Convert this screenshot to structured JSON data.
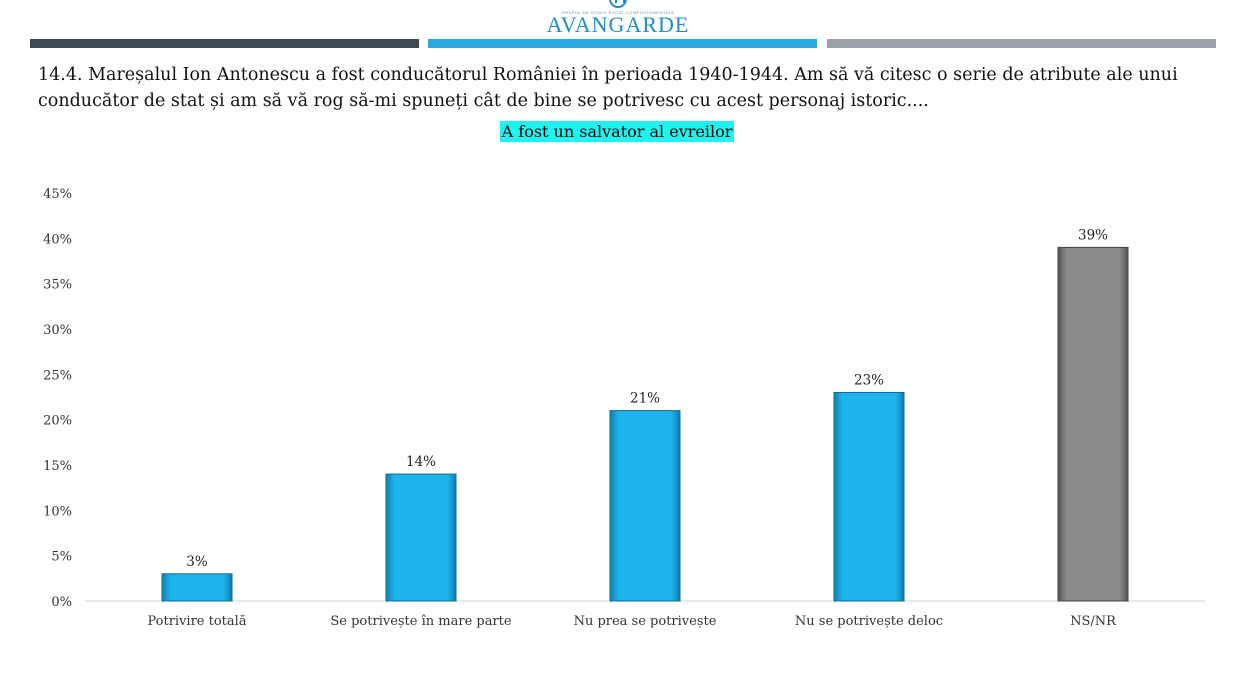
{
  "logo": {
    "name": "AVANGARDE",
    "tagline": "GRUPUL DE STUDII SOCIO-COMPORTAMENTALE",
    "icon": "avangarde-logo-icon"
  },
  "question": "14.4. Mareșalul Ion Antonescu a fost conducătorul României în perioada 1940-1944. Am să vă citesc o serie de atribute ale unui conducător de stat și am să vă rog să-mi spuneți cât de bine se potrivesc cu acest personaj istoric....",
  "colors": {
    "bar": "#1fb3ec",
    "bar_highlight": "#8a8a8a",
    "subtitle_bg": "#1ff3f0"
  },
  "chart_data": {
    "type": "bar",
    "title": "A fost un salvator al evreilor",
    "categories": [
      "Potrivire totală",
      "Se potrivește în mare parte",
      "Nu prea se potrivește",
      "Nu se potrivește deloc",
      "NS/NR"
    ],
    "values": [
      3,
      14,
      21,
      23,
      39
    ],
    "data_labels": [
      "3%",
      "14%",
      "21%",
      "23%",
      "39%"
    ],
    "bar_colors": [
      "#1fb3ec",
      "#1fb3ec",
      "#1fb3ec",
      "#1fb3ec",
      "#8a8a8a"
    ],
    "ylim": [
      0,
      45
    ],
    "yticks": [
      0,
      5,
      10,
      15,
      20,
      25,
      30,
      35,
      40,
      45
    ],
    "ytick_labels": [
      "0%",
      "5%",
      "10%",
      "15%",
      "20%",
      "25%",
      "30%",
      "35%",
      "40%",
      "45%"
    ],
    "grid": false,
    "legend": "none"
  }
}
